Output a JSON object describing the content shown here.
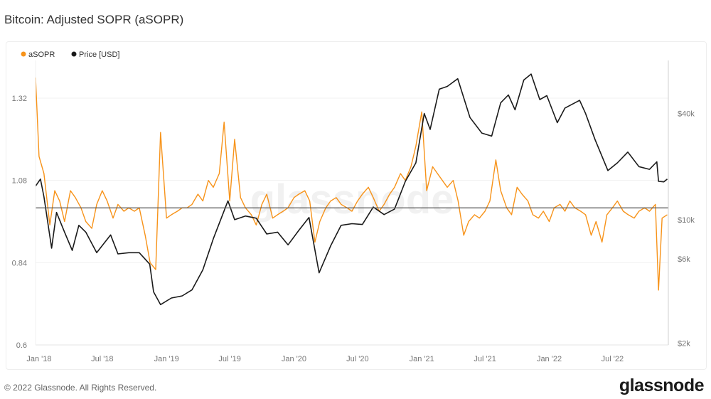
{
  "title": "Bitcoin: Adjusted SOPR (aSOPR)",
  "footer": "© 2022 Glassnode. All Rights Reserved.",
  "logo": "glassnode",
  "watermark": "glassnode",
  "chart_data": {
    "type": "line",
    "title": "Bitcoin: Adjusted SOPR (aSOPR)",
    "legend_position": "top-left",
    "grid": true,
    "x_ticks": [
      "Jan '18",
      "Jul '18",
      "Jan '19",
      "Jul '19",
      "Jan '20",
      "Jul '20",
      "Jan '21",
      "Jul '21",
      "Jan '22",
      "Jul '22"
    ],
    "x_tick_dates": [
      "2018-01-01",
      "2018-07-01",
      "2019-01-01",
      "2019-07-01",
      "2020-01-01",
      "2020-07-01",
      "2021-01-01",
      "2021-07-01",
      "2022-01-01",
      "2022-07-01"
    ],
    "xlim": [
      "2017-12-22",
      "2022-12-08"
    ],
    "y_left": {
      "ticks": [
        "0.6",
        "0.84",
        "1.08",
        "1.32"
      ],
      "tick_values": [
        0.6,
        0.84,
        1.08,
        1.32
      ],
      "lim": [
        0.6,
        1.43
      ],
      "scale": "linear"
    },
    "y_right": {
      "ticks": [
        "$2k",
        "$6k",
        "$10k",
        "$40k"
      ],
      "tick_values": [
        2000,
        6000,
        10000,
        40000
      ],
      "lim": [
        1950,
        80000
      ],
      "scale": "log"
    },
    "reference_line": {
      "axis": "left",
      "value": 1.0,
      "color": "#555555"
    },
    "series": [
      {
        "name": "aSOPR",
        "axis": "left",
        "color": "#f7931a",
        "dates": [
          "2017-12-22",
          "2018-01-01",
          "2018-01-15",
          "2018-02-01",
          "2018-02-15",
          "2018-03-01",
          "2018-03-15",
          "2018-04-01",
          "2018-04-15",
          "2018-05-01",
          "2018-05-15",
          "2018-06-01",
          "2018-06-15",
          "2018-07-01",
          "2018-07-15",
          "2018-08-01",
          "2018-08-15",
          "2018-09-01",
          "2018-09-15",
          "2018-10-01",
          "2018-10-15",
          "2018-11-01",
          "2018-11-15",
          "2018-12-01",
          "2018-12-15",
          "2019-01-01",
          "2019-01-15",
          "2019-02-01",
          "2019-02-15",
          "2019-03-01",
          "2019-03-15",
          "2019-04-01",
          "2019-04-15",
          "2019-05-01",
          "2019-05-15",
          "2019-06-01",
          "2019-06-15",
          "2019-07-01",
          "2019-07-15",
          "2019-08-01",
          "2019-08-15",
          "2019-09-01",
          "2019-09-15",
          "2019-10-01",
          "2019-10-15",
          "2019-11-01",
          "2019-11-15",
          "2019-12-01",
          "2019-12-15",
          "2020-01-01",
          "2020-01-15",
          "2020-02-01",
          "2020-02-15",
          "2020-03-01",
          "2020-03-15",
          "2020-04-01",
          "2020-04-15",
          "2020-05-01",
          "2020-05-15",
          "2020-06-01",
          "2020-06-15",
          "2020-07-01",
          "2020-07-15",
          "2020-08-01",
          "2020-08-15",
          "2020-09-01",
          "2020-09-15",
          "2020-10-01",
          "2020-10-15",
          "2020-11-01",
          "2020-11-15",
          "2020-12-01",
          "2020-12-15",
          "2021-01-01",
          "2021-01-15",
          "2021-02-01",
          "2021-02-15",
          "2021-03-01",
          "2021-03-15",
          "2021-04-01",
          "2021-04-15",
          "2021-05-01",
          "2021-05-15",
          "2021-06-01",
          "2021-06-15",
          "2021-07-01",
          "2021-07-15",
          "2021-08-01",
          "2021-08-15",
          "2021-09-01",
          "2021-09-15",
          "2021-10-01",
          "2021-10-15",
          "2021-11-01",
          "2021-11-15",
          "2021-12-01",
          "2021-12-15",
          "2022-01-01",
          "2022-01-15",
          "2022-02-01",
          "2022-02-15",
          "2022-03-01",
          "2022-03-15",
          "2022-04-01",
          "2022-04-15",
          "2022-05-01",
          "2022-05-15",
          "2022-06-01",
          "2022-06-15",
          "2022-07-01",
          "2022-07-15",
          "2022-08-01",
          "2022-08-15",
          "2022-09-01",
          "2022-09-15",
          "2022-10-01",
          "2022-10-15",
          "2022-11-01",
          "2022-11-10",
          "2022-11-20",
          "2022-12-05"
        ],
        "values": [
          1.38,
          1.15,
          1.1,
          0.95,
          1.05,
          1.02,
          0.96,
          1.05,
          1.03,
          1.0,
          0.96,
          0.94,
          1.01,
          1.05,
          1.02,
          0.97,
          1.01,
          0.99,
          1.0,
          0.99,
          1.0,
          0.92,
          0.84,
          0.82,
          1.22,
          0.97,
          0.98,
          0.99,
          1.0,
          1.0,
          1.01,
          1.04,
          1.02,
          1.08,
          1.06,
          1.1,
          1.25,
          1.02,
          1.2,
          1.03,
          1.0,
          0.98,
          0.95,
          1.01,
          1.04,
          0.97,
          0.98,
          0.99,
          1.0,
          1.03,
          1.04,
          1.05,
          1.02,
          0.9,
          0.96,
          1.0,
          1.02,
          1.03,
          1.01,
          1.0,
          0.99,
          1.02,
          1.04,
          1.06,
          1.03,
          0.99,
          1.01,
          1.04,
          1.06,
          1.1,
          1.08,
          1.12,
          1.18,
          1.28,
          1.05,
          1.12,
          1.1,
          1.08,
          1.06,
          1.08,
          1.02,
          0.92,
          0.96,
          0.98,
          0.97,
          0.99,
          1.02,
          1.14,
          1.05,
          1.0,
          0.98,
          1.06,
          1.04,
          1.02,
          0.98,
          0.97,
          0.99,
          0.96,
          1.0,
          1.01,
          0.99,
          1.02,
          1.0,
          0.99,
          0.98,
          0.92,
          0.96,
          0.9,
          0.98,
          1.0,
          1.02,
          0.99,
          0.98,
          0.97,
          0.99,
          1.0,
          0.99,
          1.01,
          0.76,
          0.97,
          0.98
        ]
      },
      {
        "name": "Price [USD]",
        "axis": "right",
        "color": "#1a1a1a",
        "dates": [
          "2017-12-22",
          "2018-01-05",
          "2018-01-15",
          "2018-02-06",
          "2018-02-20",
          "2018-03-15",
          "2018-04-06",
          "2018-04-25",
          "2018-05-15",
          "2018-06-15",
          "2018-07-25",
          "2018-08-15",
          "2018-09-15",
          "2018-10-15",
          "2018-11-14",
          "2018-11-25",
          "2018-12-15",
          "2019-01-15",
          "2019-02-15",
          "2019-03-15",
          "2019-04-15",
          "2019-05-15",
          "2019-06-26",
          "2019-07-15",
          "2019-08-15",
          "2019-09-15",
          "2019-10-15",
          "2019-11-15",
          "2019-12-15",
          "2020-01-15",
          "2020-02-13",
          "2020-03-13",
          "2020-04-15",
          "2020-05-15",
          "2020-06-15",
          "2020-07-15",
          "2020-08-15",
          "2020-09-15",
          "2020-10-15",
          "2020-11-15",
          "2020-12-15",
          "2021-01-08",
          "2021-01-25",
          "2021-02-20",
          "2021-03-15",
          "2021-04-14",
          "2021-05-19",
          "2021-06-22",
          "2021-07-20",
          "2021-08-15",
          "2021-09-06",
          "2021-09-25",
          "2021-10-20",
          "2021-11-10",
          "2021-12-05",
          "2021-12-25",
          "2022-01-24",
          "2022-02-15",
          "2022-03-29",
          "2022-04-15",
          "2022-05-12",
          "2022-06-18",
          "2022-07-15",
          "2022-08-14",
          "2022-09-15",
          "2022-10-15",
          "2022-11-05",
          "2022-11-10",
          "2022-11-25",
          "2022-12-05"
        ],
        "values": [
          15500,
          17000,
          13500,
          6900,
          11000,
          8500,
          6700,
          9300,
          8500,
          6500,
          8200,
          6400,
          6500,
          6500,
          5600,
          3900,
          3300,
          3600,
          3700,
          4000,
          5200,
          7800,
          12800,
          10000,
          10500,
          10200,
          8300,
          8500,
          7200,
          8700,
          10300,
          5000,
          7100,
          9300,
          9500,
          9400,
          11800,
          10700,
          11500,
          16500,
          21000,
          40000,
          32500,
          55000,
          57000,
          63000,
          38000,
          31000,
          29800,
          46000,
          51000,
          42000,
          62000,
          67000,
          48000,
          50500,
          35500,
          43000,
          47500,
          40000,
          28500,
          19000,
          21000,
          24200,
          20000,
          19300,
          21300,
          16500,
          16400,
          17000
        ]
      }
    ]
  }
}
